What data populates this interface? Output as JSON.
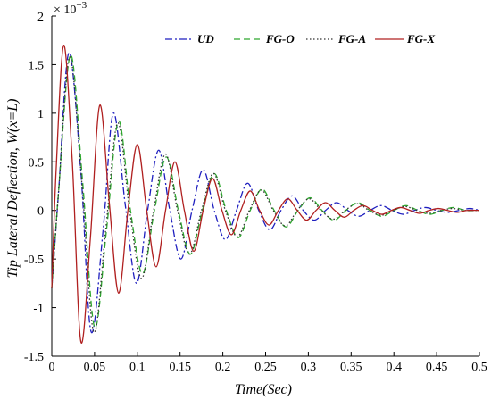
{
  "chart_data": {
    "type": "line",
    "title": "",
    "xlabel": "Time(Sec)",
    "ylabel": "Tip Lateral Deflection, W(x=L)",
    "y_multiplier": {
      "base": "× 10",
      "exponent": "−3"
    },
    "xlim": [
      0,
      0.5
    ],
    "ylim": [
      -1.5,
      2
    ],
    "x_ticks": [
      0,
      0.05,
      0.1,
      0.15,
      0.2,
      0.25,
      0.3,
      0.35,
      0.4,
      0.45,
      0.5
    ],
    "x_tick_labels": [
      "0",
      "0.05",
      "0.1",
      "0.15",
      "0.2",
      "0.25",
      "0.3",
      "0.35",
      "0.4",
      "0.45",
      "0.5"
    ],
    "y_ticks": [
      -1.5,
      -1,
      -0.5,
      0,
      0.5,
      1,
      1.5,
      2
    ],
    "y_tick_labels": [
      "-1.5",
      "-1",
      "-0.5",
      "0",
      "0.5",
      "1",
      "1.5",
      "2"
    ],
    "grid": false,
    "legend_position": "top-right",
    "series": [
      {
        "name": "UD",
        "color": "#1f1fbf",
        "dash": "dashdot",
        "x": [
          0,
          0.008,
          0.02,
          0.034,
          0.046,
          0.06,
          0.072,
          0.086,
          0.099,
          0.112,
          0.125,
          0.138,
          0.151,
          0.164,
          0.177,
          0.19,
          0.203,
          0.216,
          0.229,
          0.242,
          0.255,
          0.268,
          0.281,
          0.294,
          0.307,
          0.32,
          0.333,
          0.346,
          0.359,
          0.372,
          0.385,
          0.398,
          0.411,
          0.424,
          0.437,
          0.45,
          0.463,
          0.476,
          0.489,
          0.5
        ],
        "y": [
          -0.8,
          0.2,
          1.62,
          0.4,
          -1.25,
          -0.2,
          1.0,
          0.05,
          -0.75,
          0.0,
          0.62,
          0.0,
          -0.5,
          0.0,
          0.42,
          0.0,
          -0.3,
          0.0,
          0.28,
          0.0,
          -0.2,
          0.0,
          0.15,
          0.0,
          -0.1,
          0.0,
          0.08,
          0.0,
          -0.06,
          0.0,
          0.05,
          0.0,
          -0.04,
          0.0,
          0.03,
          0.0,
          -0.02,
          0.0,
          0.02,
          0.0
        ]
      },
      {
        "name": "FG-O",
        "color": "#2ea82e",
        "dash": "dash",
        "x": [
          0,
          0.008,
          0.022,
          0.036,
          0.05,
          0.064,
          0.078,
          0.092,
          0.106,
          0.12,
          0.134,
          0.148,
          0.162,
          0.176,
          0.19,
          0.204,
          0.218,
          0.232,
          0.246,
          0.26,
          0.274,
          0.288,
          0.302,
          0.316,
          0.33,
          0.344,
          0.358,
          0.372,
          0.386,
          0.4,
          0.414,
          0.428,
          0.442,
          0.456,
          0.47,
          0.484,
          0.5
        ],
        "y": [
          -0.8,
          0.2,
          1.6,
          0.3,
          -1.2,
          -0.2,
          0.92,
          0.0,
          -0.65,
          0.0,
          0.55,
          0.0,
          -0.45,
          0.0,
          0.38,
          0.0,
          -0.28,
          0.0,
          0.22,
          0.0,
          -0.17,
          0.0,
          0.13,
          0.0,
          -0.1,
          0.0,
          0.08,
          0.0,
          -0.06,
          0.0,
          0.05,
          0.0,
          -0.04,
          0.0,
          0.03,
          0.0,
          0.0
        ]
      },
      {
        "name": "FG-A",
        "color": "#333333",
        "dash": "dot",
        "x": [
          0,
          0.008,
          0.021,
          0.035,
          0.049,
          0.063,
          0.077,
          0.091,
          0.105,
          0.119,
          0.133,
          0.147,
          0.161,
          0.175,
          0.189,
          0.203,
          0.217,
          0.231,
          0.245,
          0.259,
          0.273,
          0.287,
          0.301,
          0.315,
          0.329,
          0.343,
          0.357,
          0.371,
          0.385,
          0.399,
          0.413,
          0.427,
          0.441,
          0.455,
          0.469,
          0.483,
          0.5
        ],
        "y": [
          -0.8,
          0.2,
          1.58,
          0.3,
          -1.25,
          -0.2,
          0.9,
          0.0,
          -0.7,
          0.0,
          0.58,
          0.0,
          -0.45,
          0.0,
          0.38,
          0.0,
          -0.27,
          0.0,
          0.21,
          0.0,
          -0.16,
          0.0,
          0.12,
          0.0,
          -0.09,
          0.0,
          0.07,
          0.0,
          -0.05,
          0.0,
          0.04,
          0.0,
          -0.03,
          0.0,
          0.02,
          0.0,
          0.0
        ]
      },
      {
        "name": "FG-X",
        "color": "#b02020",
        "dash": "solid",
        "x": [
          0,
          0.005,
          0.014,
          0.024,
          0.034,
          0.045,
          0.056,
          0.067,
          0.078,
          0.089,
          0.1,
          0.111,
          0.122,
          0.133,
          0.144,
          0.155,
          0.166,
          0.177,
          0.188,
          0.199,
          0.21,
          0.221,
          0.232,
          0.243,
          0.254,
          0.265,
          0.276,
          0.287,
          0.298,
          0.309,
          0.32,
          0.331,
          0.342,
          0.353,
          0.364,
          0.375,
          0.386,
          0.397,
          0.408,
          0.419,
          0.43,
          0.441,
          0.452,
          0.463,
          0.474,
          0.485,
          0.5
        ],
        "y": [
          -0.8,
          0.4,
          1.7,
          0.5,
          -1.35,
          -0.3,
          1.08,
          0.1,
          -0.85,
          0.0,
          0.68,
          0.0,
          -0.58,
          0.0,
          0.5,
          0.0,
          -0.42,
          0.0,
          0.33,
          0.0,
          -0.25,
          0.0,
          0.2,
          0.0,
          -0.15,
          0.0,
          0.12,
          0.0,
          -0.1,
          0.0,
          0.08,
          0.0,
          -0.07,
          0.0,
          0.05,
          0.0,
          -0.04,
          0.0,
          0.03,
          0.0,
          -0.03,
          0.0,
          0.02,
          0.0,
          -0.02,
          0.0,
          0.0
        ]
      }
    ]
  }
}
